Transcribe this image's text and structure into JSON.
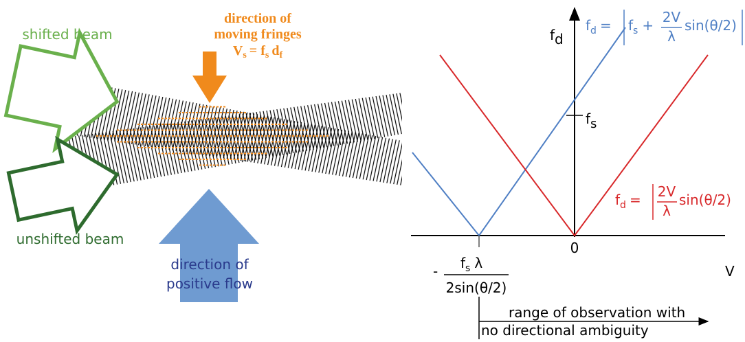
{
  "left": {
    "shifted_beam": "shifted beam",
    "unshifted_beam": "unshifted beam",
    "fringes_label": [
      "direction of",
      "moving fringes"
    ],
    "fringe_velocity": {
      "lhs": "V",
      "lhs_sub": "s",
      "eq": "= f",
      "f_sub": "s",
      "d": "d",
      "d_sub": "f"
    },
    "flow_label": [
      "direction of",
      "positive flow"
    ]
  },
  "right": {
    "y_axis": {
      "label": "f",
      "sub": "d"
    },
    "x_axis": "V",
    "origin": "0",
    "fs_tick": {
      "label": "f",
      "sub": "s"
    },
    "blue_formula": {
      "lhs": "f",
      "lhs_sub": "d",
      "eq": "=",
      "f": "f",
      "f_sub": "s",
      "plus": "+",
      "num": "2V",
      "den": "λ",
      "tail": "sin(θ/2)"
    },
    "red_formula": {
      "lhs": "f",
      "lhs_sub": "d",
      "eq": "=",
      "num": "2V",
      "den": "λ",
      "tail": "sin(θ/2)"
    },
    "neg_intercept": {
      "minus": "-",
      "num": "f",
      "num_sub": "s",
      "lambda": "λ",
      "den": "2sin(θ/2)"
    },
    "range_note": [
      "range of observation with",
      "no directional ambiguity"
    ]
  }
}
